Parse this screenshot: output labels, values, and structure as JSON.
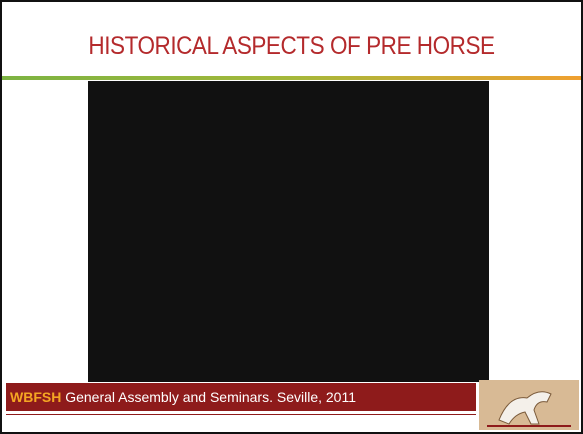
{
  "header": {
    "title": "HISTORICAL ASPECTS OF PRE HORSE"
  },
  "footer": {
    "organization": "WBFSH",
    "text": "General Assembly and Seminars. Seville, 2011"
  }
}
